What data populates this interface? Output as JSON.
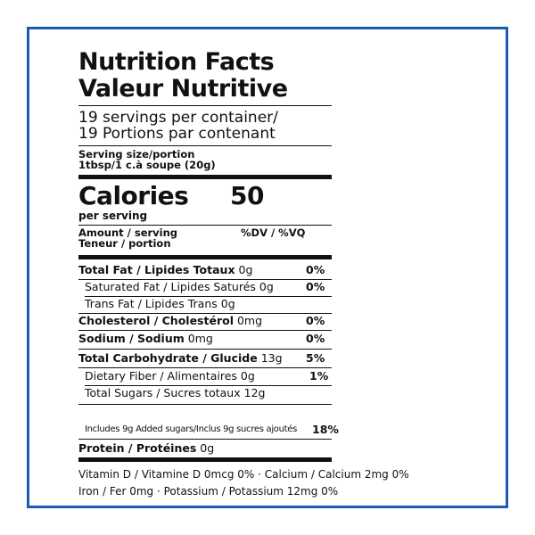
{
  "title": [
    "Nutrition Facts",
    "Valeur Nutritive"
  ],
  "servings": [
    "19 servings per container/",
    "19 Portions par contenant"
  ],
  "serving_size": {
    "label": "Serving size/portion",
    "value": "1tbsp/1 c.à soupe (20g)"
  },
  "calories": {
    "label": "Calories",
    "value": 50,
    "note": "per serving"
  },
  "amount_header": {
    "label": [
      "Amount / serving",
      "Teneur / portion"
    ],
    "dv": "%DV / %VQ"
  },
  "nutrients": [
    {
      "name": "Total Fat / Lipides Totaux",
      "amount": "0g",
      "dv": "0%"
    },
    {
      "name": "Saturated Fat / Lipides Saturés",
      "amount": "0g",
      "dv": "0%"
    },
    {
      "name": "Trans Fat / Lipides Trans",
      "amount": "0g"
    },
    {
      "name": "Cholesterol / Cholestérol",
      "amount": "0mg",
      "dv": "0%"
    },
    {
      "name": "Sodium / Sodium",
      "amount": "0mg",
      "dv": "0%"
    },
    {
      "name": "Total Carbohydrate / Glucide",
      "amount": "13g",
      "dv": "5%"
    },
    {
      "name": "Dietary Fiber / Alimentaires",
      "amount": "0g",
      "dv": "1%"
    },
    {
      "name": "Total Sugars / Sucres totaux",
      "amount": "12g"
    },
    {
      "name": "Includes 9g Added sugars/Inclus 9g sucres ajoutés",
      "dv": "18%"
    },
    {
      "name": "Protein / Protéines",
      "amount": "0g"
    }
  ],
  "footer": [
    "Vitamin D / Vitamine D 0mcg 0% · Calcium / Calcium 2mg 0%",
    "Iron / Fer 0mg · Potassium / Potassium 12mg 0%"
  ]
}
